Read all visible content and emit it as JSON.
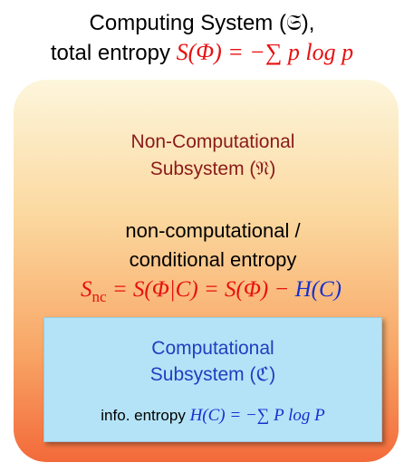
{
  "title": {
    "line1": "Computing System (𝔖),",
    "line2_text": "total entropy",
    "line2_formula": "S(Φ) = −∑ p log p"
  },
  "outer_box": {
    "name_line1": "Non-Computational",
    "name_line2": "Subsystem (𝔑)",
    "desc_line1": "non-computational /",
    "desc_line2": "conditional entropy",
    "formula": {
      "symbol": "S",
      "subscript": "nc",
      "middle": " = S(Φ|C) = S(Φ) − ",
      "end": "H(C)"
    }
  },
  "inner_box": {
    "name_line1": "Computational",
    "name_line2": "Subsystem (ℭ)",
    "desc_text": "info. entropy",
    "desc_formula": "H(C) = −∑ P log P"
  }
}
